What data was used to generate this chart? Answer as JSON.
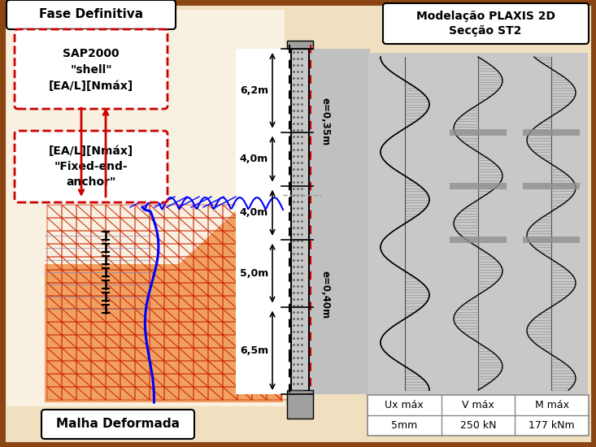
{
  "bg_color": "#f0e0c0",
  "border_color": "#8B4513",
  "title_left": "Fase Definitiva",
  "title_right_line1": "Modelação PLAXIS 2D",
  "title_right_line2": "Secção ST2",
  "label_sap": "SAP2000\n\"shell\"\n[EA/L][Nmáx]",
  "label_anchor": "[EA/L][Nmáx]\n\"Fixed-end-\nanchor\"",
  "label_bottom": "Malha Deformada",
  "depths": [
    "6,2m",
    "4,0m",
    "4,0m",
    "5,0m",
    "6,5m"
  ],
  "e_label_top": "e=0,35m",
  "e_label_bottom": "e=0,40m",
  "table_headers": [
    "Ux máx",
    "V máx",
    "M máx"
  ],
  "table_values": [
    "5mm",
    "250 kN",
    "177 kNm"
  ],
  "plaxis_panel_bg": "#c8c8c8",
  "wall_gray": "#b0b0b0",
  "soil_orange": "#f0a060",
  "mesh_red": "#cc2000",
  "left_bg": "#f8f0e0"
}
